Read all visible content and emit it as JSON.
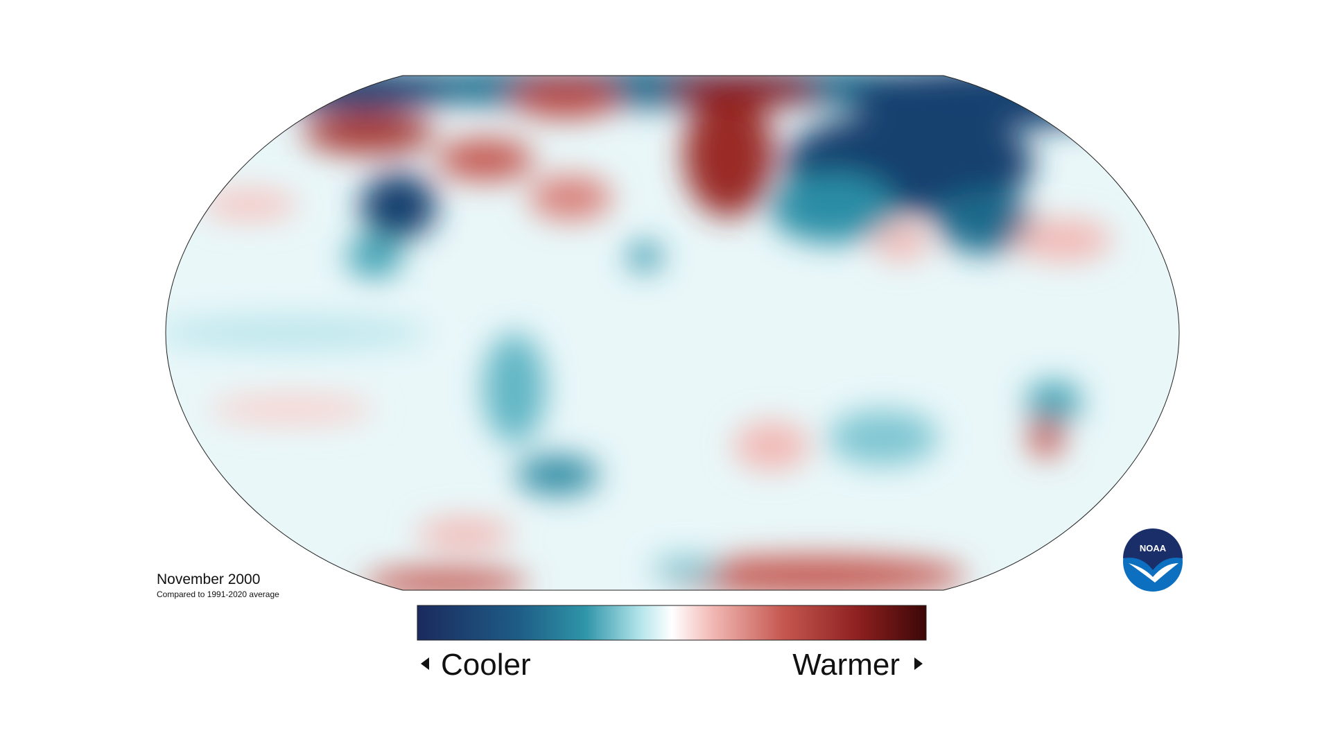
{
  "map": {
    "title": "November 2000",
    "subtitle": "Compared to 1991-2020 average",
    "legend": {
      "low": "Cooler",
      "high": "Warmer"
    },
    "logo": "NOAA"
  }
}
